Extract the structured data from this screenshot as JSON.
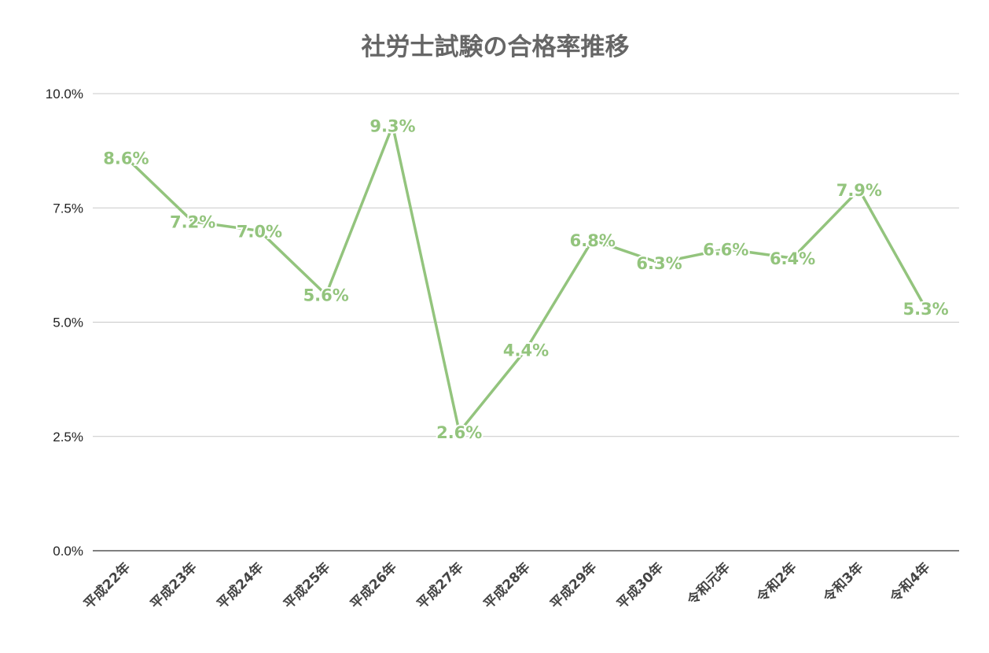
{
  "chart_data": {
    "type": "line",
    "title": "社労士試験の合格率推移",
    "xlabel": "",
    "ylabel": "",
    "categories": [
      "平成22年",
      "平成23年",
      "平成24年",
      "平成25年",
      "平成26年",
      "平成27年",
      "平成28年",
      "平成29年",
      "平成30年",
      "令和元年",
      "令和2年",
      "令和3年",
      "令和4年"
    ],
    "series": [
      {
        "name": "合格率",
        "values": [
          8.6,
          7.2,
          7.0,
          5.6,
          9.3,
          2.6,
          4.4,
          6.8,
          6.3,
          6.6,
          6.4,
          7.9,
          5.3
        ],
        "color": "#93c47d"
      }
    ],
    "data_labels": [
      "8.6%",
      "7.2%",
      "7.0%",
      "5.6%",
      "9.3%",
      "2.6%",
      "4.4%",
      "6.8%",
      "6.3%",
      "6.6%",
      "6.4%",
      "7.9%",
      "5.3%"
    ],
    "yticks": [
      "0.0%",
      "2.5%",
      "5.0%",
      "7.5%",
      "10.0%"
    ],
    "ytick_values": [
      0,
      2.5,
      5,
      7.5,
      10
    ],
    "ylim": [
      0,
      10
    ],
    "grid": true,
    "legend": "none"
  }
}
